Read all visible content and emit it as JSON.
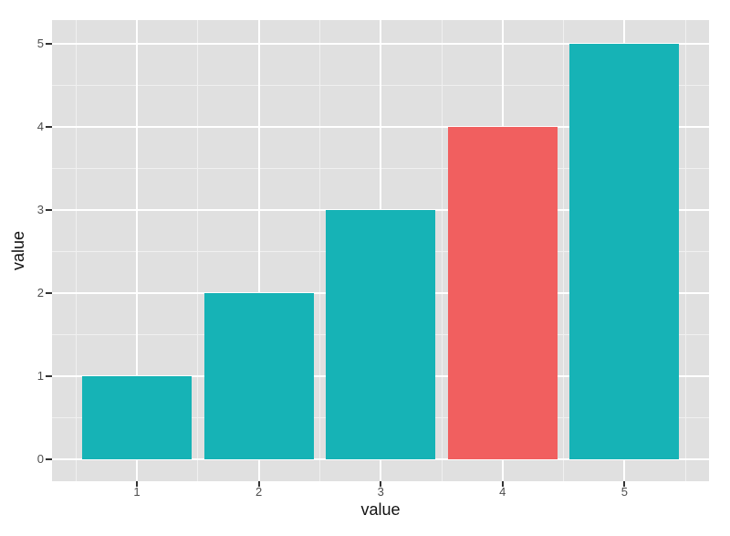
{
  "chart_data": {
    "type": "bar",
    "title": "",
    "xlabel": "value",
    "ylabel": "value",
    "categories": [
      "1",
      "2",
      "3",
      "4",
      "5"
    ],
    "values": [
      1,
      2,
      3,
      4,
      5
    ],
    "bar_colors": [
      "#16B3B6",
      "#16B3B6",
      "#16B3B6",
      "#F15F5F",
      "#16B3B6"
    ],
    "highlighted_category": "4",
    "ylim": [
      0,
      5
    ],
    "yticks": [
      "0",
      "1",
      "2",
      "3",
      "4",
      "5"
    ],
    "xlim_padding": "bars sit on baseline 0, half-bar gaps between bars",
    "grid": "white major gridlines with lighter minor gridlines on grey panel",
    "legend_position": "none",
    "colors": {
      "bar_teal": "#16B3B6",
      "bar_highlight_red": "#F15F5F",
      "panel_background": "#E0E0E0",
      "grid_major": "#FFFFFF",
      "grid_minor": "#F0F0F0",
      "tick_mark": "#333333",
      "tick_label_text": "#4D4D4D",
      "axis_title_text": "#111111",
      "page_background": "#FFFFFF"
    }
  }
}
